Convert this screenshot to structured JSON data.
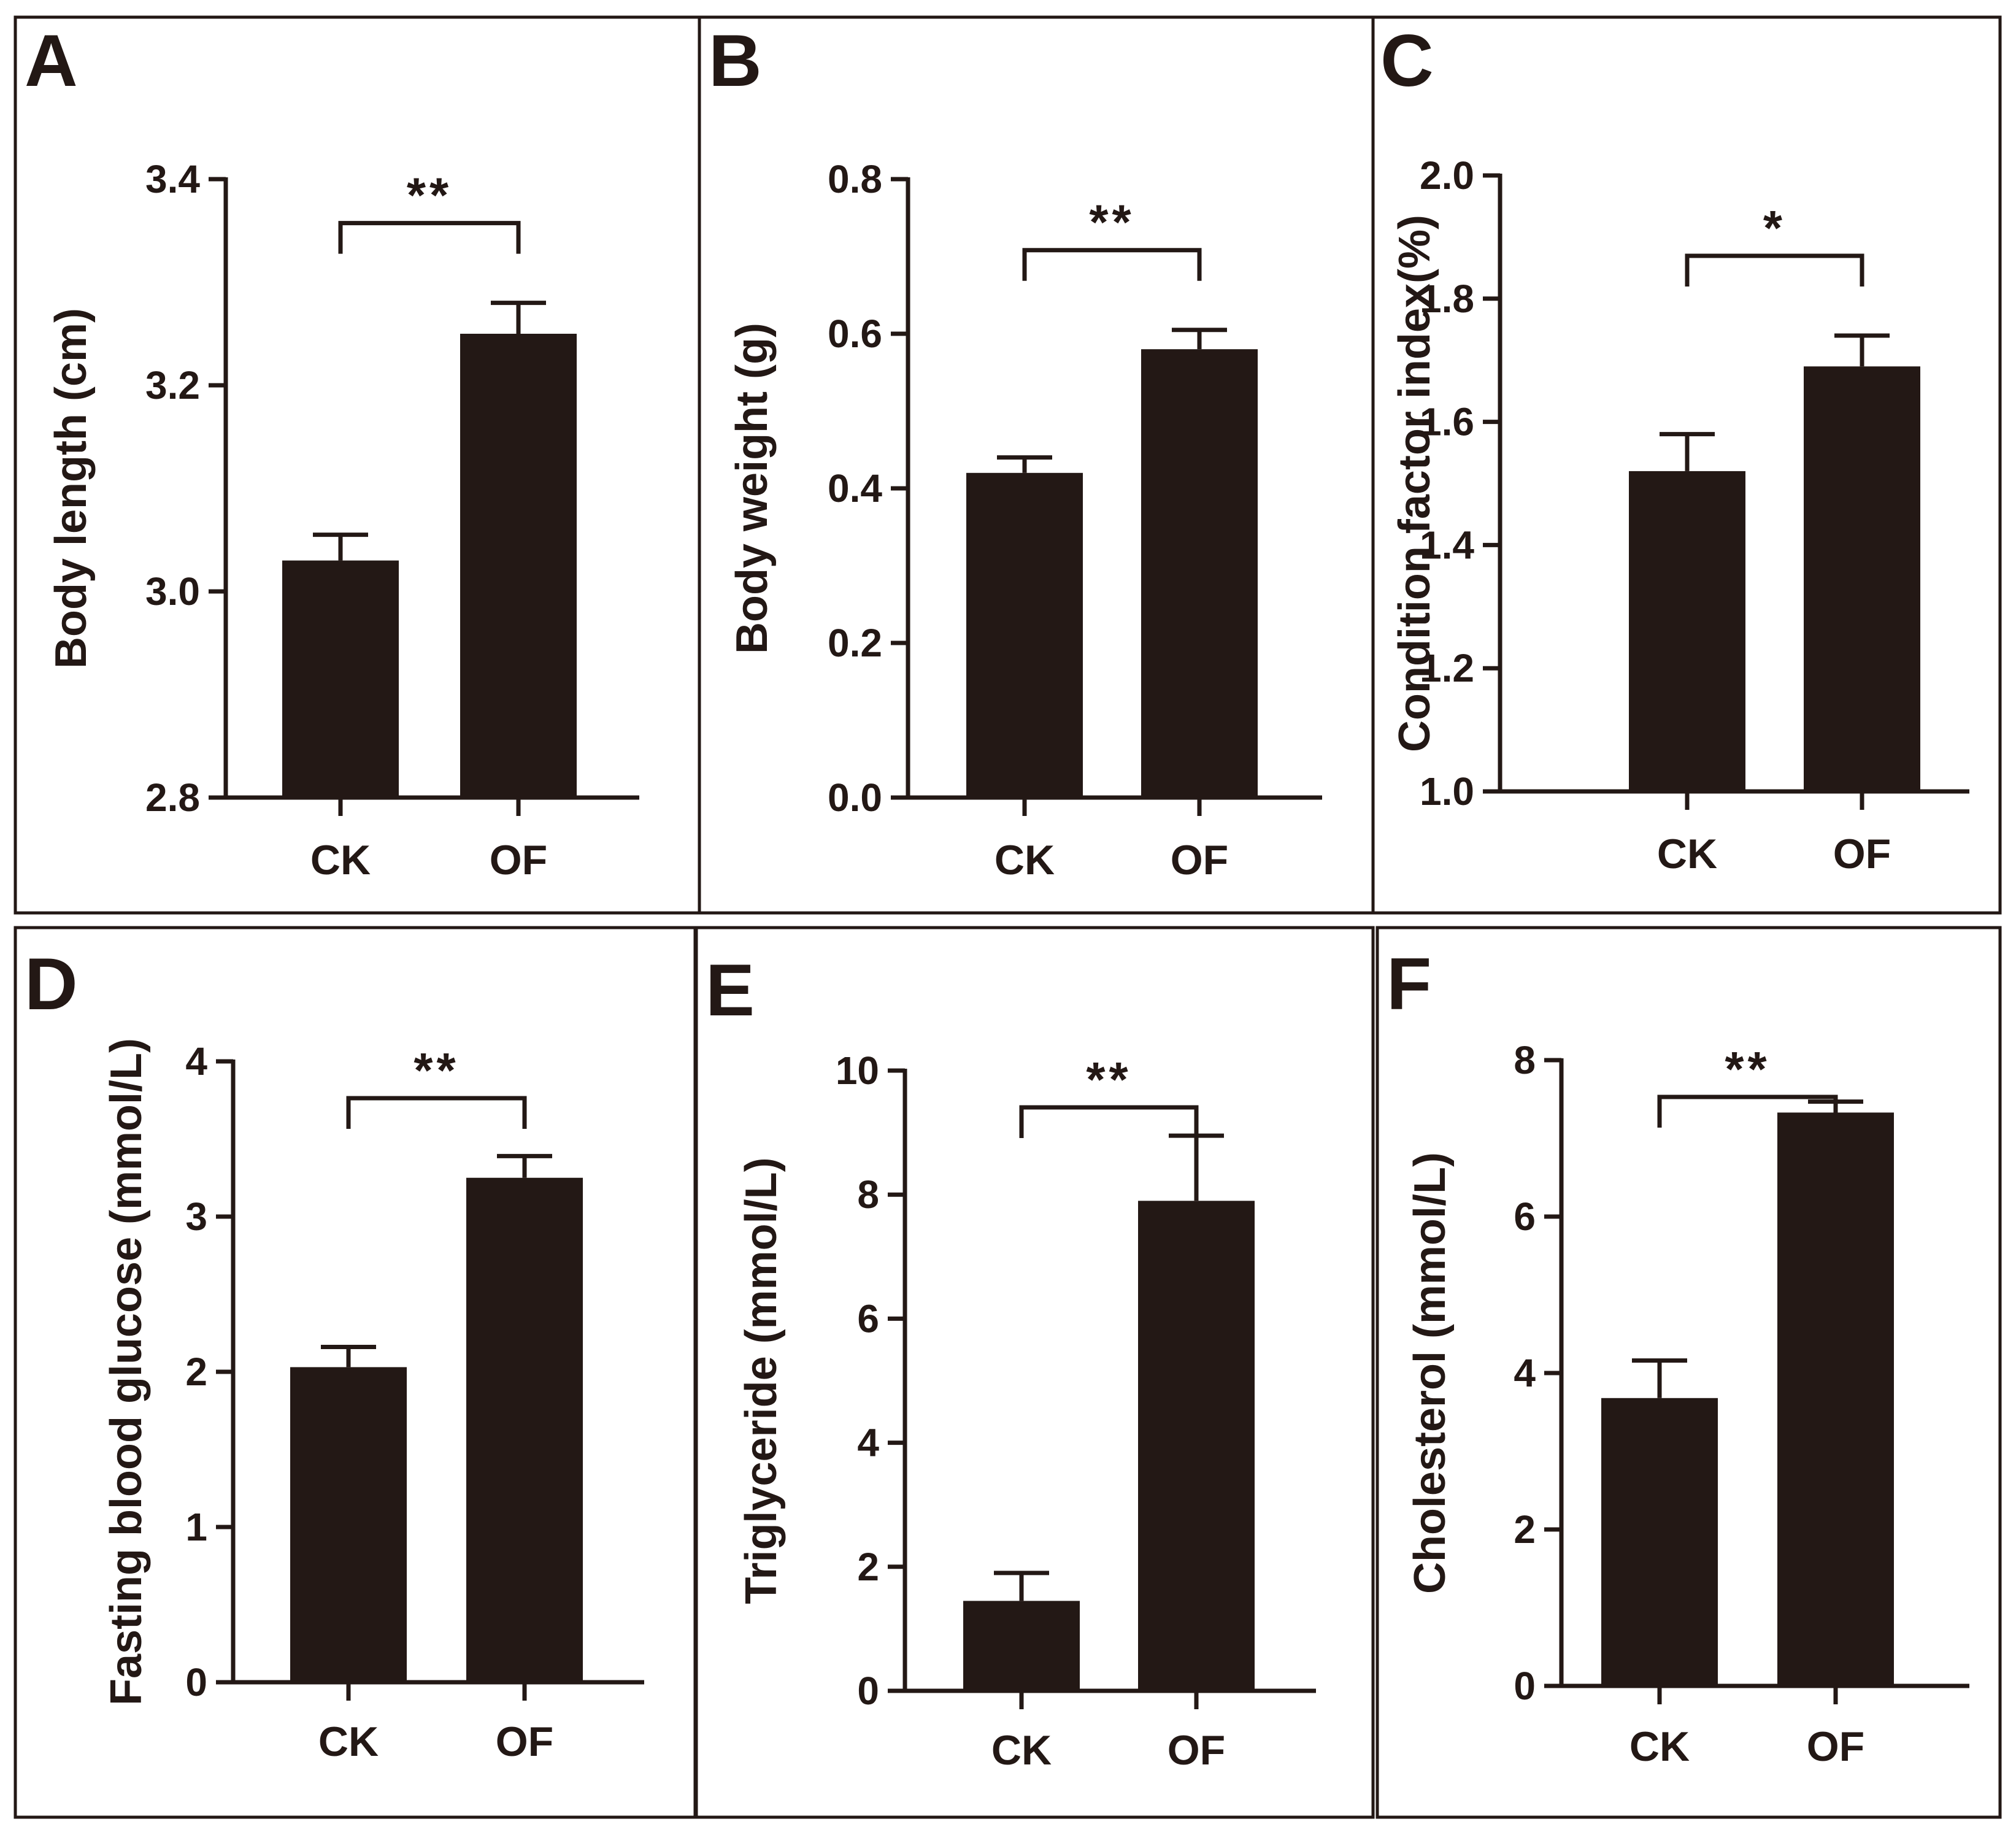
{
  "chart_data": [
    {
      "type": "bar",
      "panel": "A",
      "categories": [
        "CK",
        "OF"
      ],
      "values": [
        3.03,
        3.25
      ],
      "errors": [
        0.025,
        0.03
      ],
      "ylabel": "Body length (cm)",
      "ylim": [
        2.8,
        3.4
      ],
      "yticks": [
        "2.8",
        "3.0",
        "3.2",
        "3.4"
      ],
      "significance": "**"
    },
    {
      "type": "bar",
      "panel": "B",
      "categories": [
        "CK",
        "OF"
      ],
      "values": [
        0.42,
        0.58
      ],
      "errors": [
        0.02,
        0.025
      ],
      "ylabel": "Body weight (g)",
      "ylim": [
        0.0,
        0.8
      ],
      "yticks": [
        "0.0",
        "0.2",
        "0.4",
        "0.6",
        "0.8"
      ],
      "significance": "**"
    },
    {
      "type": "bar",
      "panel": "C",
      "categories": [
        "CK",
        "OF"
      ],
      "values": [
        1.52,
        1.69
      ],
      "errors": [
        0.06,
        0.05
      ],
      "ylabel": "Condition factor index(%)",
      "ylim": [
        1.0,
        2.0
      ],
      "yticks": [
        "1.0",
        "1.2",
        "1.4",
        "1.6",
        "1.8",
        "2.0"
      ],
      "significance": "*"
    },
    {
      "type": "bar",
      "panel": "D",
      "categories": [
        "CK",
        "OF"
      ],
      "values": [
        2.03,
        3.25
      ],
      "errors": [
        0.13,
        0.14
      ],
      "ylabel": "Fasting blood glucose (mmol/L)",
      "ylim": [
        0,
        4
      ],
      "yticks": [
        "0",
        "1",
        "2",
        "3",
        "4"
      ],
      "significance": "**"
    },
    {
      "type": "bar",
      "panel": "E",
      "categories": [
        "CK",
        "OF"
      ],
      "values": [
        1.45,
        7.9
      ],
      "errors": [
        0.45,
        1.05
      ],
      "ylabel": "Triglyceride (mmol/L)",
      "ylim": [
        0,
        10
      ],
      "yticks": [
        "0",
        "2",
        "4",
        "6",
        "8",
        "10"
      ],
      "significance": "**"
    },
    {
      "type": "bar",
      "panel": "F",
      "categories": [
        "CK",
        "OF"
      ],
      "values": [
        3.68,
        7.33
      ],
      "errors": [
        0.48,
        0.14
      ],
      "ylabel": "Cholesterol (mmol/L)",
      "ylim": [
        0,
        8
      ],
      "yticks": [
        "0",
        "2",
        "4",
        "6",
        "8"
      ],
      "significance": "**"
    }
  ]
}
